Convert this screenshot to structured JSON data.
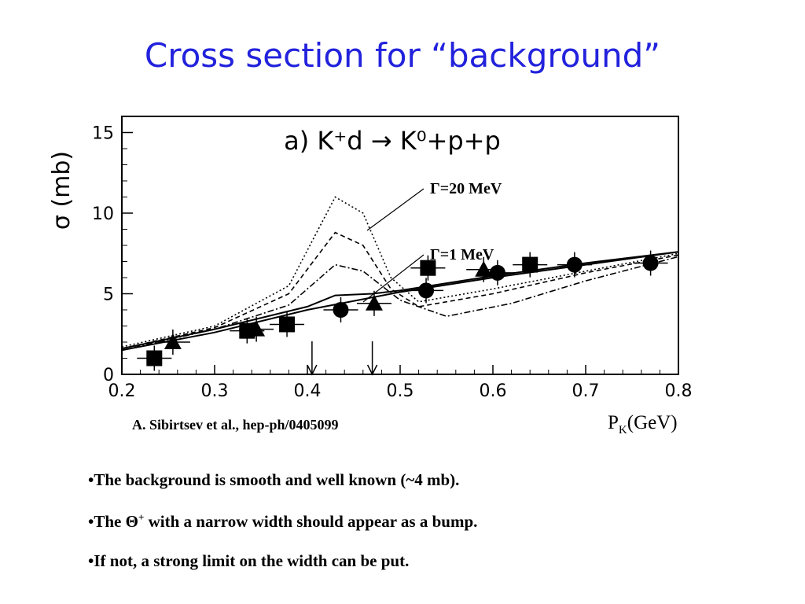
{
  "slide": {
    "title": "Cross section for “background”",
    "citation": "A. Sibirtsev et al., hep-ph/0405099",
    "x_unit": {
      "main": "P",
      "sub": "K",
      "rest": "(GeV)"
    },
    "bullets": [
      {
        "prefix": "•The background is smooth and well known  (~4 mb).",
        "sup": "",
        "suffix": ""
      },
      {
        "prefix": "•The Θ",
        "sup": "+",
        "suffix": " with a narrow width should appear as a bump."
      },
      {
        "prefix": "•If not, a strong limit on the width can be put.",
        "sup": "",
        "suffix": ""
      }
    ]
  },
  "chart_data": {
    "type": "scatter",
    "panel_label": "a) K⁺d → K⁰+p+p",
    "ylabel": "σ (mb)",
    "xlim": [
      0.2,
      0.8
    ],
    "ylim": [
      0,
      16
    ],
    "x_ticks": [
      "0.2",
      "0.3",
      "0.4",
      "0.5",
      "0.6",
      "0.7",
      "0.8"
    ],
    "y_ticks": [
      "0",
      "5",
      "10",
      "15"
    ],
    "annotations": [
      {
        "text": "Γ=20 MeV",
        "x": 0.43,
        "y": 10.0
      },
      {
        "text": "Γ=1 MeV",
        "x": 0.43,
        "y": 5.0
      }
    ],
    "arrows_at_x": [
      0.405,
      0.47
    ],
    "series": [
      {
        "marker": "square",
        "points": [
          [
            0.235,
            1.0
          ],
          [
            0.335,
            2.7
          ],
          [
            0.378,
            3.1
          ],
          [
            0.53,
            6.6
          ],
          [
            0.64,
            6.8
          ]
        ]
      },
      {
        "marker": "triangle",
        "points": [
          [
            0.255,
            2.0
          ],
          [
            0.345,
            2.8
          ],
          [
            0.472,
            4.4
          ],
          [
            0.59,
            6.5
          ]
        ]
      },
      {
        "marker": "circle",
        "points": [
          [
            0.436,
            4.0
          ],
          [
            0.528,
            5.2
          ],
          [
            0.605,
            6.3
          ],
          [
            0.688,
            6.8
          ],
          [
            0.77,
            6.9
          ]
        ]
      }
    ],
    "curves": [
      {
        "style": "solid",
        "points": [
          [
            0.2,
            1.5
          ],
          [
            0.3,
            2.6
          ],
          [
            0.4,
            4.0
          ],
          [
            0.5,
            5.1
          ],
          [
            0.6,
            6.0
          ],
          [
            0.7,
            6.8
          ],
          [
            0.8,
            7.6
          ]
        ]
      },
      {
        "style": "solid-step",
        "points": [
          [
            0.2,
            1.6
          ],
          [
            0.3,
            2.8
          ],
          [
            0.4,
            4.2
          ],
          [
            0.43,
            4.9
          ],
          [
            0.47,
            5.0
          ],
          [
            0.5,
            5.2
          ],
          [
            0.6,
            6.1
          ],
          [
            0.7,
            6.9
          ],
          [
            0.8,
            7.6
          ]
        ]
      },
      {
        "style": "dotted",
        "points": [
          [
            0.2,
            1.7
          ],
          [
            0.3,
            3.0
          ],
          [
            0.38,
            5.5
          ],
          [
            0.43,
            11.0
          ],
          [
            0.46,
            10.0
          ],
          [
            0.49,
            6.0
          ],
          [
            0.52,
            4.5
          ],
          [
            0.6,
            5.3
          ],
          [
            0.7,
            6.4
          ],
          [
            0.8,
            7.5
          ]
        ]
      },
      {
        "style": "dashed",
        "points": [
          [
            0.2,
            1.6
          ],
          [
            0.3,
            2.9
          ],
          [
            0.38,
            5.0
          ],
          [
            0.43,
            8.8
          ],
          [
            0.46,
            8.0
          ],
          [
            0.49,
            5.3
          ],
          [
            0.52,
            4.2
          ],
          [
            0.6,
            5.0
          ],
          [
            0.7,
            6.3
          ],
          [
            0.8,
            7.4
          ]
        ]
      },
      {
        "style": "dashdot",
        "points": [
          [
            0.2,
            1.5
          ],
          [
            0.3,
            2.8
          ],
          [
            0.38,
            4.3
          ],
          [
            0.43,
            6.8
          ],
          [
            0.46,
            6.4
          ],
          [
            0.5,
            4.6
          ],
          [
            0.55,
            3.6
          ],
          [
            0.62,
            4.4
          ],
          [
            0.7,
            5.8
          ],
          [
            0.8,
            7.3
          ]
        ]
      }
    ]
  }
}
